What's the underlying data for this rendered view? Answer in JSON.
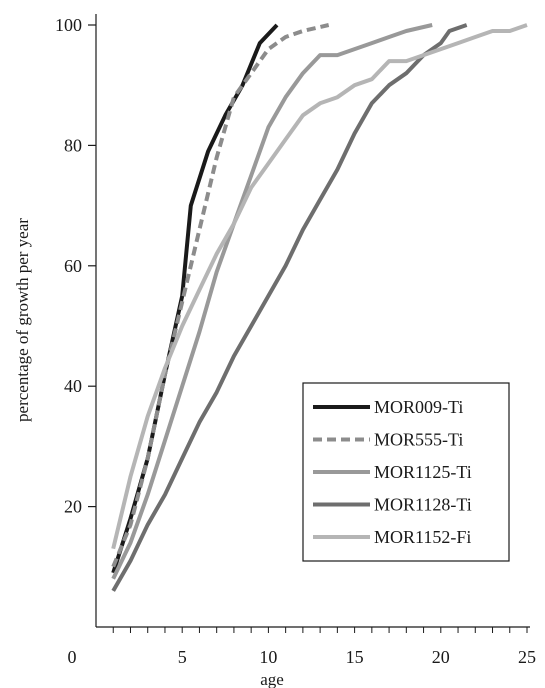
{
  "chart_data": {
    "type": "line",
    "xlabel": "age",
    "ylabel": "percentage of growth per year",
    "xlim": [
      0,
      25
    ],
    "ylim": [
      0,
      100
    ],
    "x_ticks": [
      0,
      5,
      10,
      15,
      20,
      25
    ],
    "y_ticks": [
      20,
      40,
      60,
      80,
      100
    ],
    "x_minor_tick_step": 1,
    "grid": false,
    "legend_position": "bottom-right",
    "series": [
      {
        "name": "MOR009-Ti",
        "color": "#1a1a1a",
        "dash": "solid",
        "points": [
          [
            1,
            9
          ],
          [
            2,
            18
          ],
          [
            3,
            28
          ],
          [
            4,
            42
          ],
          [
            5,
            55
          ],
          [
            5.5,
            70
          ],
          [
            6.5,
            79
          ],
          [
            7.5,
            85
          ],
          [
            8.5,
            90
          ],
          [
            9.5,
            97
          ],
          [
            10.5,
            100
          ]
        ]
      },
      {
        "name": "MOR555-Ti",
        "color": "#8c8c8c",
        "dash": "dashed",
        "points": [
          [
            1,
            10
          ],
          [
            2,
            17
          ],
          [
            3,
            28
          ],
          [
            4,
            42
          ],
          [
            5,
            54
          ],
          [
            6,
            66
          ],
          [
            7,
            78
          ],
          [
            8,
            88
          ],
          [
            9,
            92
          ],
          [
            10,
            96
          ],
          [
            11,
            98
          ],
          [
            12,
            99
          ],
          [
            13.5,
            100
          ]
        ]
      },
      {
        "name": "MOR1125-Ti",
        "color": "#999999",
        "dash": "solid",
        "points": [
          [
            1,
            8
          ],
          [
            2,
            14
          ],
          [
            3,
            22
          ],
          [
            4,
            31
          ],
          [
            5,
            40
          ],
          [
            6,
            49
          ],
          [
            7,
            59
          ],
          [
            8,
            67
          ],
          [
            9,
            75
          ],
          [
            10,
            83
          ],
          [
            11,
            88
          ],
          [
            12,
            92
          ],
          [
            13,
            95
          ],
          [
            14,
            95
          ],
          [
            15,
            96
          ],
          [
            16,
            97
          ],
          [
            17,
            98
          ],
          [
            18,
            99
          ],
          [
            19.5,
            100
          ]
        ]
      },
      {
        "name": "MOR1128-Ti",
        "color": "#6e6e6e",
        "dash": "solid",
        "points": [
          [
            1,
            6
          ],
          [
            2,
            11
          ],
          [
            3,
            17
          ],
          [
            4,
            22
          ],
          [
            5,
            28
          ],
          [
            6,
            34
          ],
          [
            7,
            39
          ],
          [
            8,
            45
          ],
          [
            9,
            50
          ],
          [
            10,
            55
          ],
          [
            11,
            60
          ],
          [
            12,
            66
          ],
          [
            13,
            71
          ],
          [
            14,
            76
          ],
          [
            15,
            82
          ],
          [
            16,
            87
          ],
          [
            17,
            90
          ],
          [
            18,
            92
          ],
          [
            19,
            95
          ],
          [
            20,
            97
          ],
          [
            20.5,
            99
          ],
          [
            21.5,
            100
          ]
        ]
      },
      {
        "name": "MOR1152-Fi",
        "color": "#b5b5b5",
        "dash": "solid",
        "points": [
          [
            1,
            13
          ],
          [
            2,
            25
          ],
          [
            3,
            35
          ],
          [
            4,
            43
          ],
          [
            5,
            50
          ],
          [
            6,
            56
          ],
          [
            7,
            62
          ],
          [
            8,
            67
          ],
          [
            9,
            73
          ],
          [
            10,
            77
          ],
          [
            11,
            81
          ],
          [
            12,
            85
          ],
          [
            13,
            87
          ],
          [
            14,
            88
          ],
          [
            15,
            90
          ],
          [
            16,
            91
          ],
          [
            17,
            94
          ],
          [
            18,
            94
          ],
          [
            19,
            95
          ],
          [
            20,
            96
          ],
          [
            21,
            97
          ],
          [
            22,
            98
          ],
          [
            23,
            99
          ],
          [
            24,
            99
          ],
          [
            25,
            100
          ]
        ]
      }
    ]
  }
}
